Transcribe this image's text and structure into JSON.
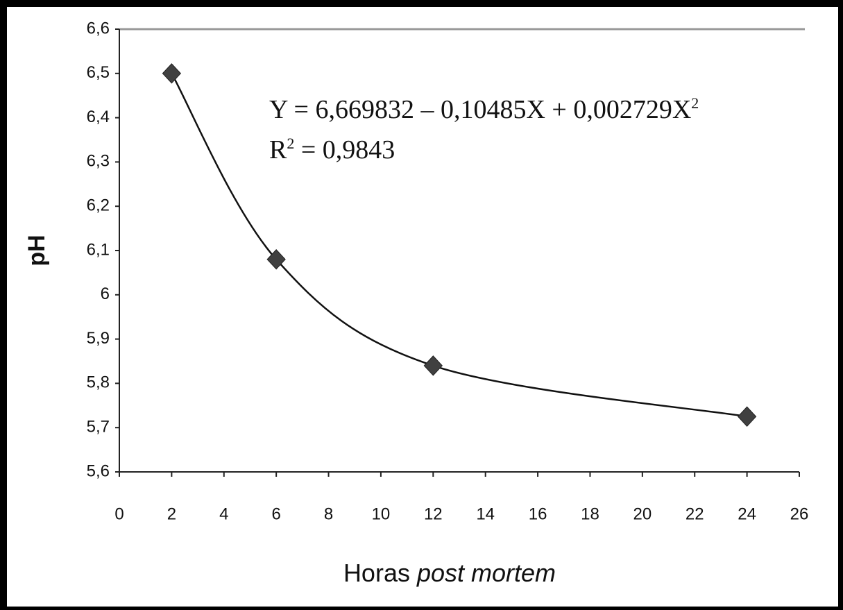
{
  "chart_data": {
    "type": "scatter",
    "x_label": [
      "Horas",
      "post mortem"
    ],
    "y_label": "pH",
    "annotations": [
      [
        "Y = 6,669832 – 0,10485X + 0,002729X",
        "2"
      ],
      [
        "R",
        "2",
        " = 0,9843"
      ]
    ],
    "series": [
      {
        "color": "#404040",
        "x": [
          2,
          6,
          12,
          24
        ],
        "values": [
          6.5,
          6.08,
          5.84,
          5.725
        ]
      }
    ],
    "xlim": [
      0,
      26
    ],
    "xticks": [
      0,
      2,
      4,
      6,
      8,
      10,
      12,
      14,
      16,
      18,
      20,
      22,
      24,
      26
    ],
    "ylim": [
      5.6,
      6.6
    ],
    "yticks": [
      {
        "value": 5.6,
        "label": "5,6"
      },
      {
        "value": 5.7,
        "label": "5,7"
      },
      {
        "value": 5.8,
        "label": "5,8"
      },
      {
        "value": 5.9,
        "label": "5,9"
      },
      6,
      {
        "value": 6.1,
        "label": "6,1"
      },
      {
        "value": 6.2,
        "label": "6,2"
      },
      {
        "value": 6.3,
        "label": "6,3"
      },
      {
        "value": 6.4,
        "label": "6,4"
      },
      {
        "value": 6.5,
        "label": "6,5"
      },
      {
        "value": 6.6,
        "label": "6,6"
      }
    ],
    "grid": false
  }
}
